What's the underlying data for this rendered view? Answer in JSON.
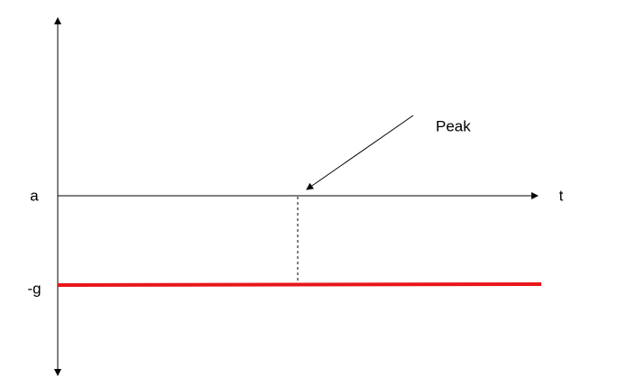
{
  "axes": {
    "y_label": "a",
    "x_label": "t"
  },
  "level_label": "-g",
  "annotation": "Peak"
}
